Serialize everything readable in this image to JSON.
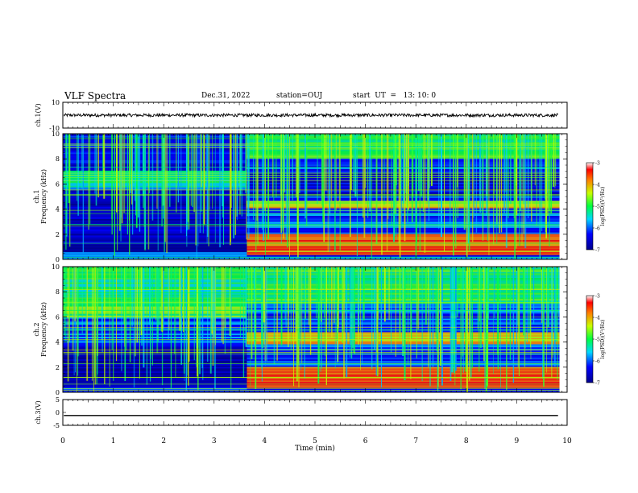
{
  "header": {
    "title": "VLF Spectra",
    "date": "Dec.31, 2022",
    "station": "station=OUJ",
    "start": "start  UT  =   13: 10: 0"
  },
  "chart_data": [
    {
      "type": "line",
      "panel": "ch1-waveform",
      "ylabel": "ch.1(V)",
      "ylim": [
        -10,
        10
      ],
      "yticks": [
        10,
        -10
      ],
      "xlim": [
        0,
        10
      ],
      "series": [
        {
          "description_level_V": 0,
          "amplitude_V": 1.2
        }
      ],
      "line_color": "#000000"
    },
    {
      "type": "heatmap",
      "panel": "ch1-spectrogram",
      "ylabel_channel": "ch.1",
      "ylabel": "Frequency (kHz)",
      "ylim": [
        0,
        10
      ],
      "yticks": [
        "0",
        "2",
        "4",
        "6",
        "8",
        "10"
      ],
      "xlim": [
        0,
        9.85
      ],
      "colorbar": {
        "label": "log(PSD)(V²/Hz)",
        "range": [
          -7,
          -3
        ],
        "ticks": [
          "-3",
          "-4",
          "-5",
          "-6",
          "-7"
        ]
      },
      "segments": [
        {
          "t_start": 0,
          "t_end": 3.65,
          "bands": [
            {
              "f_low": 5.7,
              "f_high": 7.0,
              "level": -5.3
            },
            {
              "f_low": 0.5,
              "f_high": 5.5,
              "level": -6.7
            },
            {
              "f_low": 7.0,
              "f_high": 10,
              "level": -6.4
            }
          ]
        },
        {
          "t_start": 3.65,
          "t_end": 9.85,
          "bands": [
            {
              "f_low": 0.3,
              "f_high": 2.0,
              "level": -3.8
            },
            {
              "f_low": 4.0,
              "f_high": 4.6,
              "level": -4.3
            },
            {
              "f_low": 8.0,
              "f_high": 10,
              "level": -5.0
            },
            {
              "f_low": 5.0,
              "f_high": 6.8,
              "level": -6.5
            }
          ]
        }
      ]
    },
    {
      "type": "heatmap",
      "panel": "ch2-spectrogram",
      "ylabel_channel": "ch.2",
      "ylabel": "Frequency (kHz)",
      "ylim": [
        0,
        10
      ],
      "yticks": [
        "0",
        "2",
        "4",
        "6",
        "8",
        "10"
      ],
      "xlim": [
        0,
        9.85
      ],
      "colorbar": {
        "label": "log(PSD)(V²/Hz)",
        "range": [
          -7,
          -3
        ],
        "ticks": [
          "-3",
          "-4",
          "-5",
          "-6",
          "-7"
        ]
      },
      "segments": [
        {
          "t_start": 0,
          "t_end": 3.65,
          "bands": [
            {
              "f_low": 6.0,
              "f_high": 7.2,
              "level": -4.8
            },
            {
              "f_low": 7.2,
              "f_high": 10,
              "level": -5.2
            },
            {
              "f_low": 0.3,
              "f_high": 3.5,
              "level": -6.8
            }
          ]
        },
        {
          "t_start": 3.65,
          "t_end": 9.85,
          "bands": [
            {
              "f_low": 0.3,
              "f_high": 2.0,
              "level": -3.7
            },
            {
              "f_low": 3.8,
              "f_high": 4.8,
              "level": -4.2
            },
            {
              "f_low": 7.0,
              "f_high": 10,
              "level": -5.0
            }
          ]
        }
      ]
    },
    {
      "type": "line",
      "panel": "ch3-waveform",
      "ylabel": "ch.3(V)",
      "ylim": [
        -5,
        5
      ],
      "yticks": [
        "5",
        "0",
        "-5"
      ],
      "xlabel": "Time  (min)",
      "xlim": [
        0,
        10
      ],
      "xticks": [
        "0",
        "1",
        "2",
        "3",
        "4",
        "5",
        "6",
        "7",
        "8",
        "9",
        "10"
      ],
      "series": [
        {
          "description_level_V": -1.2,
          "amplitude_V": 0
        }
      ],
      "line_color": "#000000"
    }
  ]
}
